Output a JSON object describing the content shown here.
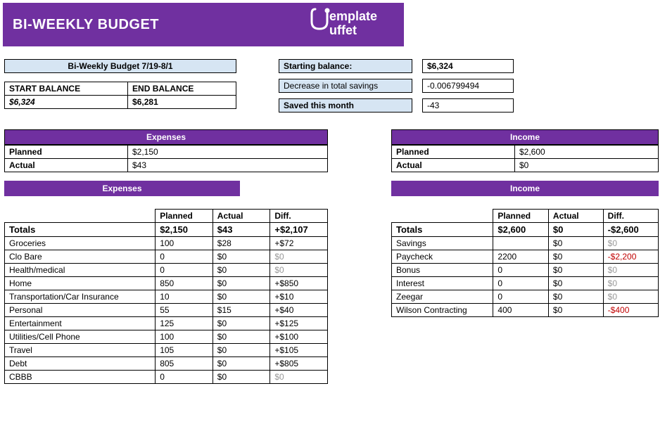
{
  "header": {
    "title": "BI-WEEKLY BUDGET",
    "logo_line1": "emplate",
    "logo_line2": "uffet"
  },
  "period": {
    "title": "Bi-Weekly Budget 7/19-8/1"
  },
  "balances": {
    "start_label": "START BALANCE",
    "end_label": "END BALANCE",
    "start_value": "$6,324",
    "end_value": "$6,281"
  },
  "stats": {
    "starting_balance_label": "Starting balance:",
    "starting_balance_value": "$6,324",
    "decrease_label": "Decrease in total savings",
    "decrease_value": "-0.006799494",
    "saved_label": "Saved this month",
    "saved_value": "-43"
  },
  "expenses_summary": {
    "header": "Expenses",
    "planned_label": "Planned",
    "planned_value": "$2,150",
    "actual_label": "Actual",
    "actual_value": "$43"
  },
  "income_summary": {
    "header": "Income",
    "planned_label": "Planned",
    "planned_value": "$2,600",
    "actual_label": "Actual",
    "actual_value": "$0"
  },
  "expenses_detail": {
    "subheader": "Expenses",
    "col_planned": "Planned",
    "col_actual": "Actual",
    "col_diff": "Diff.",
    "totals_label": "Totals",
    "totals_planned": "$2,150",
    "totals_actual": "$43",
    "totals_diff": "+$2,107",
    "rows": [
      {
        "cat": "Groceries",
        "planned": "100",
        "actual": "$28",
        "diff": "+$72",
        "diff_gray": false
      },
      {
        "cat": "Clo Bare",
        "planned": "0",
        "actual": "$0",
        "diff": "$0",
        "diff_gray": true
      },
      {
        "cat": "Health/medical",
        "planned": "0",
        "actual": "$0",
        "diff": "$0",
        "diff_gray": true
      },
      {
        "cat": "Home",
        "planned": "850",
        "actual": "$0",
        "diff": "+$850",
        "diff_gray": false
      },
      {
        "cat": "Transportation/Car Insurance",
        "planned": "10",
        "actual": "$0",
        "diff": "+$10",
        "diff_gray": false
      },
      {
        "cat": "Personal",
        "planned": "55",
        "actual": "$15",
        "diff": "+$40",
        "diff_gray": false
      },
      {
        "cat": "Entertainment",
        "planned": "125",
        "actual": "$0",
        "diff": "+$125",
        "diff_gray": false
      },
      {
        "cat": "Utilities/Cell Phone",
        "planned": "100",
        "actual": "$0",
        "diff": "+$100",
        "diff_gray": false
      },
      {
        "cat": "Travel",
        "planned": "105",
        "actual": "$0",
        "diff": "+$105",
        "diff_gray": false
      },
      {
        "cat": "Debt",
        "planned": "805",
        "actual": "$0",
        "diff": "+$805",
        "diff_gray": false
      },
      {
        "cat": "CBBB",
        "planned": "0",
        "actual": "$0",
        "diff": "$0",
        "diff_gray": true
      }
    ]
  },
  "income_detail": {
    "subheader": "Income",
    "col_planned": "Planned",
    "col_actual": "Actual",
    "col_diff": "Diff.",
    "totals_label": "Totals",
    "totals_planned": "$2,600",
    "totals_actual": "$0",
    "totals_diff": "-$2,600",
    "rows": [
      {
        "cat": "Savings",
        "planned": "",
        "actual": "$0",
        "diff": "$0",
        "diff_gray": true,
        "diff_red": false
      },
      {
        "cat": "Paycheck",
        "planned": "2200",
        "actual": "$0",
        "diff": "-$2,200",
        "diff_gray": false,
        "diff_red": true
      },
      {
        "cat": "Bonus",
        "planned": "0",
        "actual": "$0",
        "diff": "$0",
        "diff_gray": true,
        "diff_red": false
      },
      {
        "cat": "Interest",
        "planned": "0",
        "actual": "$0",
        "diff": "$0",
        "diff_gray": true,
        "diff_red": false
      },
      {
        "cat": "Zeegar",
        "planned": "0",
        "actual": "$0",
        "diff": "$0",
        "diff_gray": true,
        "diff_red": false
      },
      {
        "cat": "Wilson Contracting",
        "planned": "400",
        "actual": "$0",
        "diff": "-$400",
        "diff_gray": false,
        "diff_red": true
      }
    ]
  }
}
